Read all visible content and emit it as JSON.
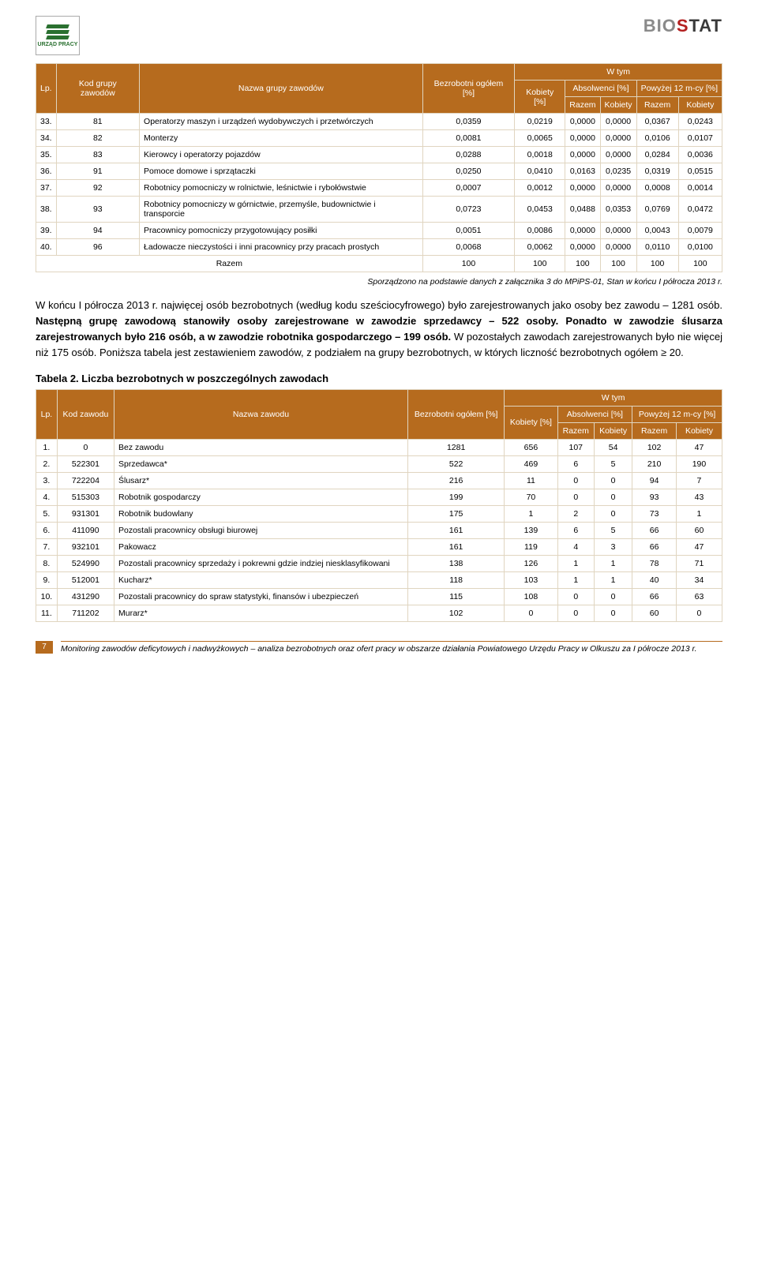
{
  "header": {
    "logo_left_label": "URZĄD PRACY",
    "logo_right_bio": "BIO",
    "logo_right_s": "S",
    "logo_right_tat": "TAT"
  },
  "table1": {
    "headers": {
      "lp": "Lp.",
      "kod": "Kod grupy zawodów",
      "nazwa": "Nazwa grupy zawodów",
      "bezrobotni": "Bezrobotni ogółem [%]",
      "wtym": "W tym",
      "kobiety": "Kobiety [%]",
      "absolwenci": "Absolwenci [%]",
      "powyzej": "Powyżej 12 m-cy [%]",
      "razem": "Razem",
      "kobiety2": "Kobiety"
    },
    "rows": [
      {
        "lp": "33.",
        "kod": "81",
        "nazwa": "Operatorzy maszyn i urządzeń wydobywczych i przetwórczych",
        "v": [
          "0,0359",
          "0,0219",
          "0,0000",
          "0,0000",
          "0,0367",
          "0,0243"
        ]
      },
      {
        "lp": "34.",
        "kod": "82",
        "nazwa": "Monterzy",
        "v": [
          "0,0081",
          "0,0065",
          "0,0000",
          "0,0000",
          "0,0106",
          "0,0107"
        ]
      },
      {
        "lp": "35.",
        "kod": "83",
        "nazwa": "Kierowcy i operatorzy pojazdów",
        "v": [
          "0,0288",
          "0,0018",
          "0,0000",
          "0,0000",
          "0,0284",
          "0,0036"
        ]
      },
      {
        "lp": "36.",
        "kod": "91",
        "nazwa": "Pomoce domowe i sprzątaczki",
        "v": [
          "0,0250",
          "0,0410",
          "0,0163",
          "0,0235",
          "0,0319",
          "0,0515"
        ]
      },
      {
        "lp": "37.",
        "kod": "92",
        "nazwa": "Robotnicy pomocniczy w rolnictwie, leśnictwie i rybołówstwie",
        "v": [
          "0,0007",
          "0,0012",
          "0,0000",
          "0,0000",
          "0,0008",
          "0,0014"
        ]
      },
      {
        "lp": "38.",
        "kod": "93",
        "nazwa": "Robotnicy pomocniczy w górnictwie, przemyśle, budownictwie i transporcie",
        "v": [
          "0,0723",
          "0,0453",
          "0,0488",
          "0,0353",
          "0,0769",
          "0,0472"
        ]
      },
      {
        "lp": "39.",
        "kod": "94",
        "nazwa": "Pracownicy pomocniczy przygotowujący posiłki",
        "v": [
          "0,0051",
          "0,0086",
          "0,0000",
          "0,0000",
          "0,0043",
          "0,0079"
        ]
      },
      {
        "lp": "40.",
        "kod": "96",
        "nazwa": "Ładowacze nieczystości i inni pracownicy przy pracach prostych",
        "v": [
          "0,0068",
          "0,0062",
          "0,0000",
          "0,0000",
          "0,0110",
          "0,0100"
        ]
      }
    ],
    "total": {
      "label": "Razem",
      "v": [
        "100",
        "100",
        "100",
        "100",
        "100",
        "100"
      ]
    }
  },
  "source1": "Sporządzono na podstawie danych z załącznika 3 do MPiPS-01, Stan w końcu I półrocza 2013 r.",
  "paragraph": {
    "t1": "W końcu I półrocza 2013 r. najwięcej osób bezrobotnych (według kodu sześciocyfrowego) było zarejestrowanych jako osoby bez zawodu – 1281 osób. ",
    "b1": "Następną grupę zawodową stanowiły osoby zarejestrowane w zawodzie sprzedawcy – 522 osoby. Ponadto w zawodzie ślusarza zarejestrowanych było 216 osób, a w zawodzie robotnika gospodarczego – 199 osób.",
    "t2": " W pozostałych zawodach zarejestrowanych było nie więcej niż 175 osób. Poniższa tabela jest zestawieniem zawodów, z podziałem na grupy bezrobotnych, w których liczność bezrobotnych ogółem ≥ 20."
  },
  "table2_title": "Tabela 2. Liczba bezrobotnych w poszczególnych zawodach",
  "table2": {
    "headers": {
      "lp": "Lp.",
      "kod": "Kod zawodu",
      "nazwa": "Nazwa zawodu",
      "bezrobotni": "Bezrobotni ogółem [%]",
      "wtym": "W tym",
      "kobiety": "Kobiety [%]",
      "absolwenci": "Absolwenci [%]",
      "powyzej": "Powyżej 12 m-cy [%]",
      "razem": "Razem",
      "kobiety2": "Kobiety"
    },
    "rows": [
      {
        "lp": "1.",
        "kod": "0",
        "nazwa": "Bez zawodu",
        "v": [
          "1281",
          "656",
          "107",
          "54",
          "102",
          "47"
        ]
      },
      {
        "lp": "2.",
        "kod": "522301",
        "nazwa": "Sprzedawca*",
        "v": [
          "522",
          "469",
          "6",
          "5",
          "210",
          "190"
        ]
      },
      {
        "lp": "3.",
        "kod": "722204",
        "nazwa": "Ślusarz*",
        "v": [
          "216",
          "11",
          "0",
          "0",
          "94",
          "7"
        ]
      },
      {
        "lp": "4.",
        "kod": "515303",
        "nazwa": "Robotnik gospodarczy",
        "v": [
          "199",
          "70",
          "0",
          "0",
          "93",
          "43"
        ]
      },
      {
        "lp": "5.",
        "kod": "931301",
        "nazwa": "Robotnik budowlany",
        "v": [
          "175",
          "1",
          "2",
          "0",
          "73",
          "1"
        ]
      },
      {
        "lp": "6.",
        "kod": "411090",
        "nazwa": "Pozostali pracownicy obsługi biurowej",
        "v": [
          "161",
          "139",
          "6",
          "5",
          "66",
          "60"
        ]
      },
      {
        "lp": "7.",
        "kod": "932101",
        "nazwa": "Pakowacz",
        "v": [
          "161",
          "119",
          "4",
          "3",
          "66",
          "47"
        ]
      },
      {
        "lp": "8.",
        "kod": "524990",
        "nazwa": "Pozostali pracownicy sprzedaży i pokrewni gdzie indziej niesklasyfikowani",
        "v": [
          "138",
          "126",
          "1",
          "1",
          "78",
          "71"
        ]
      },
      {
        "lp": "9.",
        "kod": "512001",
        "nazwa": "Kucharz*",
        "v": [
          "118",
          "103",
          "1",
          "1",
          "40",
          "34"
        ]
      },
      {
        "lp": "10.",
        "kod": "431290",
        "nazwa": "Pozostali pracownicy do spraw statystyki, finansów i ubezpieczeń",
        "v": [
          "115",
          "108",
          "0",
          "0",
          "66",
          "63"
        ]
      },
      {
        "lp": "11.",
        "kod": "711202",
        "nazwa": "Murarz*",
        "v": [
          "102",
          "0",
          "0",
          "0",
          "60",
          "0"
        ]
      }
    ]
  },
  "footer": {
    "page": "7",
    "text": "Monitoring zawodów deficytowych i nadwyżkowych – analiza bezrobotnych oraz ofert pracy w obszarze działania Powiatowego Urzędu Pracy w Olkuszu za I półrocze 2013 r."
  },
  "colors": {
    "header_bg": "#b66b1e",
    "header_fg": "#ffffff",
    "border": "#e0d5c0"
  }
}
